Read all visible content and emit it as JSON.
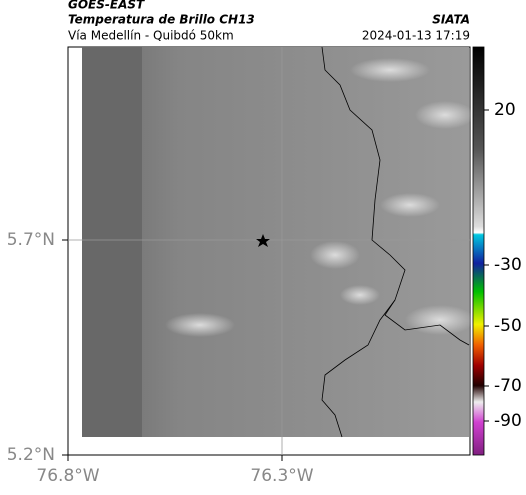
{
  "header": {
    "source": "GOES-EAST",
    "title": "Temperatura de Brillo CH13",
    "org": "SIATA",
    "subtitle": "Vía Medellín - Quibdó 50km",
    "timestamp": "2024-01-13 17:19"
  },
  "map": {
    "lat_labels": [
      "5.7°N",
      "5.2°N"
    ],
    "lon_labels": [
      "76.8°W",
      "76.3°W"
    ]
  },
  "colorbar": {
    "ticks": [
      20,
      -30,
      -50,
      -70,
      -90
    ]
  }
}
